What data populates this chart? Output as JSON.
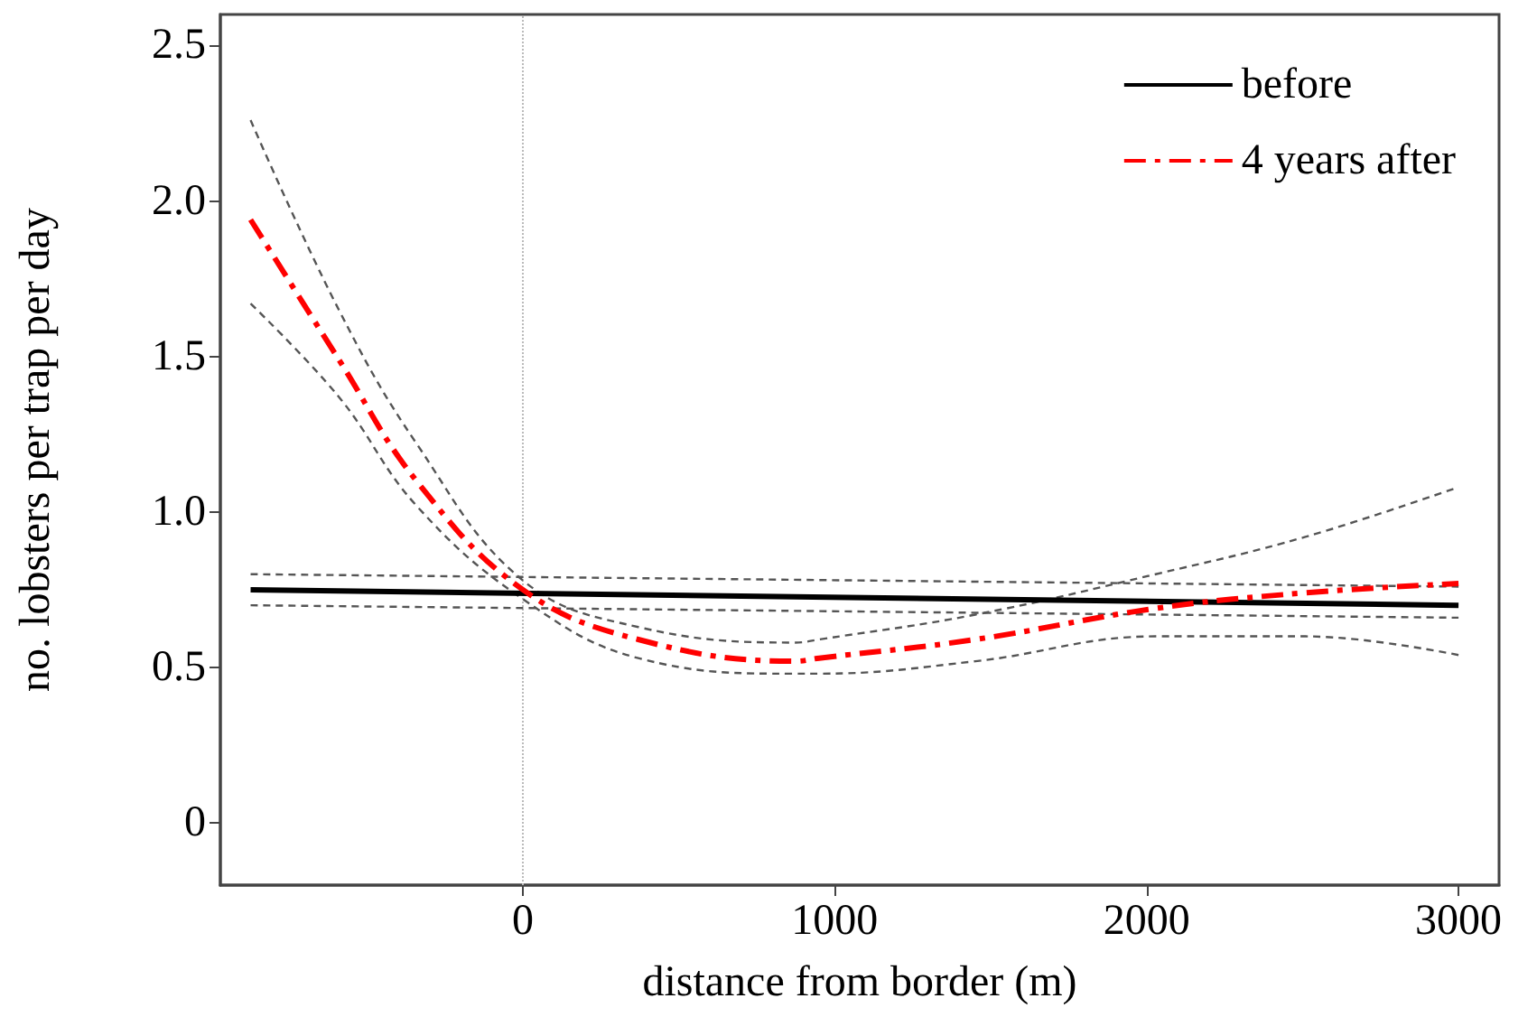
{
  "chart_data": {
    "type": "line",
    "xlabel": "distance from border (m)",
    "ylabel": "no. lobsters per trap per day",
    "xlim": [
      -970,
      3130
    ],
    "xticks": [
      0,
      1000,
      2000,
      3000
    ],
    "ylim": [
      -0.2,
      2.6
    ],
    "yticks": [
      0,
      0.5,
      {
        "value": 1,
        "label": "1.0"
      },
      1.5,
      {
        "value": 2,
        "label": "2.0"
      },
      2.5
    ],
    "grid": false,
    "legend": "top right",
    "marker": "none",
    "ref_lines": [
      {
        "axis": "x",
        "value": 0,
        "color": "#bbbbbb",
        "line_style": "dotted"
      }
    ],
    "series": [
      {
        "name": "before",
        "color": "#000000",
        "line_style": "solid",
        "x": [
          -873,
          3000
        ],
        "values": [
          0.75,
          0.7
        ]
      },
      {
        "color": "#555555",
        "line_style": "dashed",
        "x": [
          -873,
          3000
        ],
        "values": [
          0.8,
          0.76
        ]
      },
      {
        "color": "#555555",
        "line_style": "dashed",
        "x": [
          -873,
          3000
        ],
        "values": [
          0.7,
          0.66
        ]
      },
      {
        "name": "4 years after",
        "color": "#ff0000",
        "line_style": "dashed",
        "x": [
          -873,
          -590,
          -341,
          0,
          370,
          873,
          950,
          1451,
          2029,
          2509,
          3000
        ],
        "values": [
          1.94,
          1.49,
          1.1,
          0.75,
          0.59,
          0.52,
          0.53,
          0.59,
          0.69,
          0.74,
          0.77
        ]
      },
      {
        "color": "#555555",
        "line_style": "dashed",
        "x": [
          -873,
          -590,
          -341,
          0,
          370,
          873,
          950,
          1451,
          2029,
          2509,
          3000
        ],
        "values": [
          2.26,
          1.65,
          1.22,
          0.78,
          0.63,
          0.58,
          0.59,
          0.67,
          0.8,
          0.92,
          1.08
        ]
      },
      {
        "color": "#555555",
        "line_style": "dashed",
        "x": [
          -873,
          -590,
          -341,
          0,
          370,
          873,
          950,
          1451,
          2029,
          2509,
          3000
        ],
        "values": [
          1.67,
          1.37,
          1.02,
          0.72,
          0.53,
          0.48,
          0.48,
          0.52,
          0.6,
          0.6,
          0.54
        ]
      }
    ]
  }
}
